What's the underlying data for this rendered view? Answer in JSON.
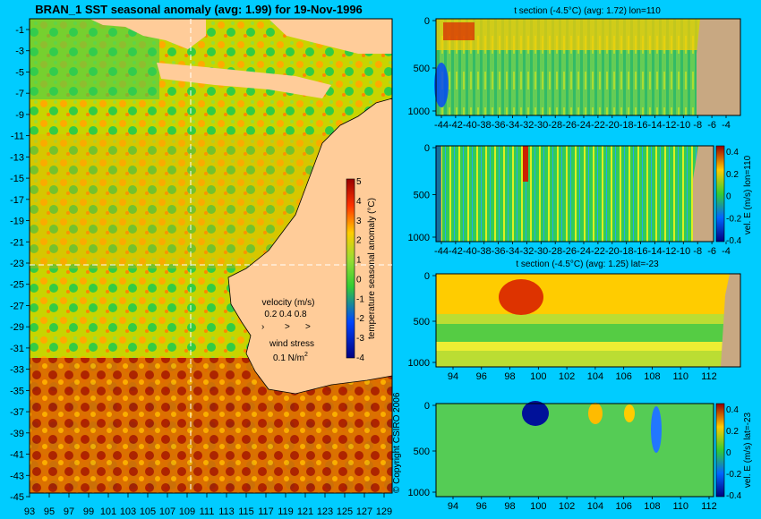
{
  "colors": {
    "background": "#00ccff",
    "land": "#ffcc99",
    "land_section": "#c8a882"
  },
  "map": {
    "title": "BRAN_1 SST seasonal anomaly (avg: 1.99) for 19-Nov-1996",
    "lat_ticks": [
      "-1",
      "-3",
      "-5",
      "-7",
      "-9",
      "-11",
      "-13",
      "-15",
      "-17",
      "-19",
      "-21",
      "-23",
      "-25",
      "-27",
      "-29",
      "-31",
      "-33",
      "-35",
      "-37",
      "-39",
      "-41",
      "-43",
      "-45"
    ],
    "lon_ticks": [
      "93",
      "95",
      "97",
      "99",
      "101",
      "103",
      "105",
      "107",
      "109",
      "111",
      "113",
      "115",
      "117",
      "119",
      "121",
      "123",
      "125",
      "127",
      "129"
    ],
    "colorbar": {
      "label": "temperature seasonal anomaly (°C)",
      "ticks": [
        "5",
        "4",
        "3",
        "2",
        "1",
        "0",
        "-1",
        "-2",
        "-3",
        "-4"
      ]
    },
    "velocity_label": "velocity (m/s)",
    "velocity_scale": "0.2 0.4 0.8",
    "wind_label": "wind stress",
    "wind_scale": "0.1 N/m",
    "wind_exp": "2",
    "copyright": "© Copyright CSIRO 2006"
  },
  "panels": [
    {
      "title": "t section (-4.5°C) (avg: 1.72) lon=110",
      "x_ticks": [
        "-44",
        "-42",
        "-40",
        "-38",
        "-36",
        "-34",
        "-32",
        "-30",
        "-28",
        "-26",
        "-24",
        "-22",
        "-20",
        "-18",
        "-16",
        "-14",
        "-12",
        "-10",
        "-8",
        "-6",
        "-4"
      ],
      "y_ticks": [
        "0",
        "500",
        "1000"
      ]
    },
    {
      "title": "",
      "x_ticks": [
        "-44",
        "-42",
        "-40",
        "-38",
        "-36",
        "-34",
        "-32",
        "-30",
        "-28",
        "-26",
        "-24",
        "-22",
        "-20",
        "-18",
        "-16",
        "-14",
        "-12",
        "-10",
        "-8",
        "-6",
        "-4"
      ],
      "y_ticks": [
        "0",
        "500",
        "1000"
      ],
      "colorbar_label": "vel. E (m/s) lon=110",
      "cb_ticks": [
        "0.4",
        "0.2",
        "0",
        "-0.2",
        "-0.4"
      ]
    },
    {
      "title": "t section (-4.5°C) (avg: 1.25) lat=-23",
      "x_ticks": [
        "94",
        "96",
        "98",
        "100",
        "102",
        "104",
        "106",
        "108",
        "110",
        "112"
      ],
      "y_ticks": [
        "0",
        "500",
        "1000"
      ]
    },
    {
      "title": "",
      "x_ticks": [
        "94",
        "96",
        "98",
        "100",
        "102",
        "104",
        "106",
        "108",
        "110",
        "112"
      ],
      "y_ticks": [
        "0",
        "500",
        "1000"
      ],
      "colorbar_label": "vel. E (m/s) lat=-23",
      "cb_ticks": [
        "0.4",
        "0.2",
        "0",
        "-0.2",
        "-0.4"
      ]
    }
  ],
  "chart_data": [
    {
      "type": "heatmap",
      "title": "BRAN_1 SST seasonal anomaly (avg: 1.99) for 19-Nov-1996",
      "xlim": [
        93,
        130
      ],
      "ylim": [
        -45,
        0
      ],
      "colorbar_range": [
        -4,
        5
      ]
    },
    {
      "type": "heatmap",
      "title": "t section (-4.5°C) (avg: 1.72) lon=110",
      "xlim": [
        -45,
        -3
      ],
      "ylim": [
        1050,
        0
      ]
    },
    {
      "type": "heatmap",
      "title": "",
      "xlim": [
        -45,
        -3
      ],
      "ylim": [
        1050,
        0
      ],
      "colorbar_range": [
        -0.4,
        0.4
      ]
    },
    {
      "type": "heatmap",
      "title": "t section (-4.5°C) (avg: 1.25) lat=-23",
      "xlim": [
        93,
        114
      ],
      "ylim": [
        1050,
        0
      ]
    },
    {
      "type": "heatmap",
      "title": "",
      "xlim": [
        93,
        114
      ],
      "ylim": [
        1050,
        0
      ],
      "colorbar_range": [
        -0.4,
        0.4
      ]
    }
  ]
}
